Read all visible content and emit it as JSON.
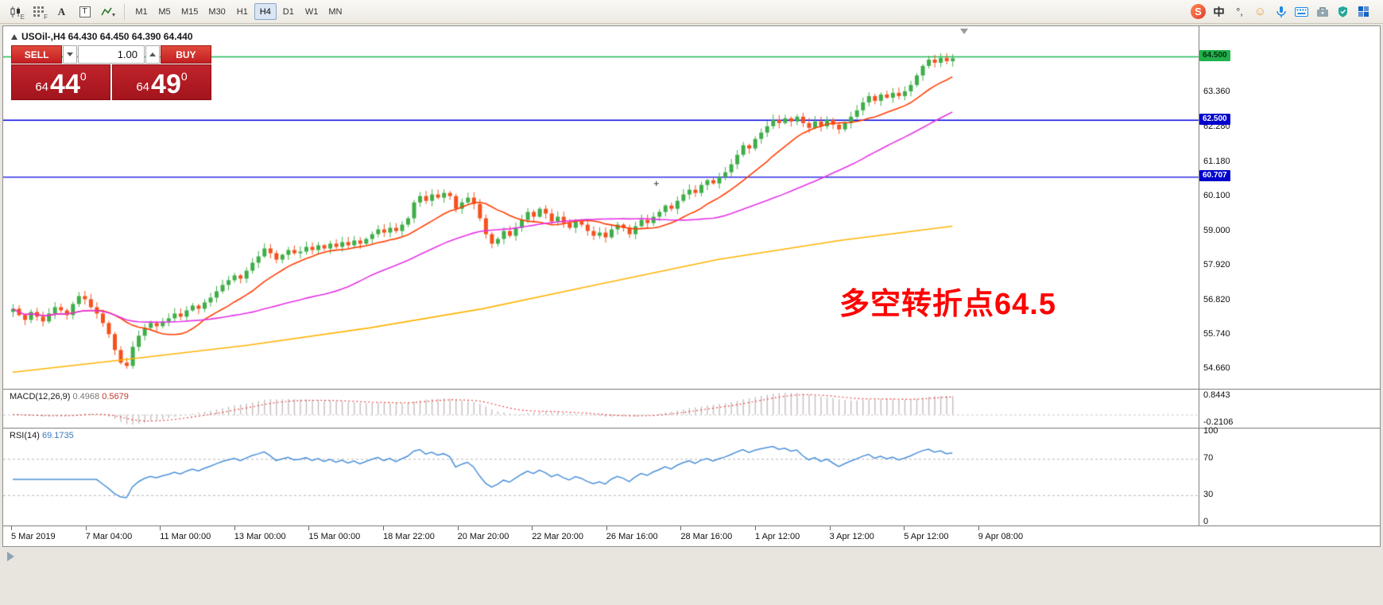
{
  "toolbar": {
    "icon_badges": {
      "candles": "E",
      "grid": "F"
    },
    "text_tool": "A",
    "textbox_tool": "T",
    "timeframes": [
      {
        "label": "M1",
        "active": false
      },
      {
        "label": "M5",
        "active": false
      },
      {
        "label": "M15",
        "active": false
      },
      {
        "label": "M30",
        "active": false
      },
      {
        "label": "H1",
        "active": false
      },
      {
        "label": "H4",
        "active": true
      },
      {
        "label": "D1",
        "active": false
      },
      {
        "label": "W1",
        "active": false
      },
      {
        "label": "MN",
        "active": false
      }
    ],
    "tray": {
      "logo": "S",
      "lang": "中",
      "punct": "°,",
      "emoji": "☺"
    }
  },
  "chart": {
    "title": "USOil-,H4  64.430 64.450 64.390 64.440",
    "symbol": "USOil-",
    "period": "H4",
    "ohlc": {
      "open": "64.430",
      "high": "64.450",
      "low": "64.390",
      "close": "64.440"
    },
    "annotation": "多空转折点64.5",
    "price_scale": [
      "64.500",
      "63.360",
      "62.280",
      "61.180",
      "60.100",
      "59.000",
      "57.920",
      "56.820",
      "55.740",
      "54.660"
    ],
    "hlines": [
      {
        "price": 64.5,
        "color": "#1db954",
        "label": "64.500",
        "label_bg": "#21b14c",
        "label_fg": "#06300f"
      },
      {
        "price": 62.5,
        "color": "#0000e0",
        "label": "62.500",
        "label_bg": "#0000cd",
        "label_fg": "#ffffff"
      },
      {
        "price": 60.707,
        "color": "#0000e0",
        "label": "60.707",
        "label_bg": "#0000cd",
        "label_fg": "#ffffff"
      }
    ],
    "time_axis": [
      "5 Mar 2019",
      "7 Mar 04:00",
      "11 Mar 00:00",
      "13 Mar 00:00",
      "15 Mar 00:00",
      "18 Mar 22:00",
      "20 Mar 20:00",
      "22 Mar 20:00",
      "26 Mar 16:00",
      "28 Mar 16:00",
      "1 Apr 12:00",
      "3 Apr 12:00",
      "5 Apr 12:00",
      "9 Apr 08:00"
    ]
  },
  "trade_panel": {
    "sell_label": "SELL",
    "buy_label": "BUY",
    "volume": "1.00",
    "sell_price": {
      "prefix": "64",
      "big": "44",
      "sup": "0"
    },
    "buy_price": {
      "prefix": "64",
      "big": "49",
      "sup": "0"
    }
  },
  "macd": {
    "name": "MACD(12,26,9)",
    "value": "0.4968",
    "signal_value": "0.5679",
    "scale_top": "0.8443",
    "scale_bottom": "-0.2106"
  },
  "rsi": {
    "name": "RSI(14)",
    "value": "69.1735",
    "scale": [
      "100",
      "70",
      "30",
      "0"
    ]
  },
  "chart_data": {
    "type": "candlestick",
    "symbol": "USOil-",
    "timeframe": "H4",
    "title": "USOil-,H4  64.430 64.450 64.390 64.440",
    "ylim": [
      54.03,
      65.45
    ],
    "first_open": 56.45,
    "closes": [
      56.55,
      56.35,
      56.2,
      56.45,
      56.3,
      56.15,
      56.4,
      56.6,
      56.5,
      56.35,
      56.7,
      56.95,
      56.85,
      56.6,
      56.4,
      56.1,
      55.75,
      55.25,
      54.85,
      54.75,
      55.35,
      55.7,
      55.95,
      56.1,
      56.0,
      56.15,
      56.25,
      56.4,
      56.3,
      56.5,
      56.65,
      56.55,
      56.75,
      56.9,
      57.1,
      57.3,
      57.45,
      57.6,
      57.5,
      57.75,
      58.0,
      58.2,
      58.45,
      58.3,
      58.1,
      58.25,
      58.4,
      58.3,
      58.35,
      58.5,
      58.4,
      58.55,
      58.45,
      58.6,
      58.5,
      58.65,
      58.55,
      58.7,
      58.6,
      58.75,
      58.9,
      59.05,
      58.95,
      59.1,
      59.0,
      59.2,
      59.4,
      59.9,
      60.1,
      59.95,
      60.15,
      60.05,
      60.2,
      60.1,
      59.7,
      59.9,
      60.05,
      59.85,
      59.4,
      58.9,
      58.6,
      58.75,
      59.0,
      58.85,
      59.1,
      59.35,
      59.6,
      59.45,
      59.7,
      59.55,
      59.3,
      59.45,
      59.25,
      59.1,
      59.3,
      59.2,
      59.0,
      58.85,
      58.95,
      58.8,
      59.05,
      59.2,
      59.1,
      58.9,
      59.15,
      59.35,
      59.25,
      59.45,
      59.6,
      59.8,
      59.7,
      59.95,
      60.15,
      60.3,
      60.2,
      60.45,
      60.6,
      60.5,
      60.7,
      60.85,
      61.1,
      61.4,
      61.7,
      61.6,
      61.9,
      62.1,
      62.3,
      62.5,
      62.4,
      62.55,
      62.45,
      62.6,
      62.4,
      62.25,
      62.45,
      62.3,
      62.5,
      62.35,
      62.2,
      62.4,
      62.6,
      62.8,
      63.05,
      63.25,
      63.1,
      63.3,
      63.2,
      63.35,
      63.25,
      63.4,
      63.6,
      63.9,
      64.2,
      64.4,
      64.3,
      64.45,
      64.35,
      64.44
    ],
    "extreme_low": {
      "index": 19,
      "price": 54.66
    },
    "ma_slow_waypoints": [
      [
        0,
        54.55
      ],
      [
        0.12,
        54.95
      ],
      [
        0.25,
        55.4
      ],
      [
        0.38,
        55.95
      ],
      [
        0.5,
        56.55
      ],
      [
        0.62,
        57.3
      ],
      [
        0.75,
        58.1
      ],
      [
        0.88,
        58.7
      ],
      [
        1,
        59.15
      ]
    ],
    "indicators": {
      "macd": {
        "fast": 12,
        "slow": 26,
        "signal": 9,
        "current": 0.4968,
        "signal_current": 0.5679
      },
      "rsi": {
        "period": 14,
        "current": 69.1735,
        "levels": [
          70,
          30
        ]
      }
    },
    "colors": {
      "up": "#3fae49",
      "down": "#f4511e",
      "ma_fast": "#ff3d00",
      "ma_mid": "#e533e5",
      "ma_slow": "#ffb300",
      "macd_hist": "#c7bcbc",
      "macd_signal": "#e53935",
      "rsi": "#4a90d9"
    }
  }
}
